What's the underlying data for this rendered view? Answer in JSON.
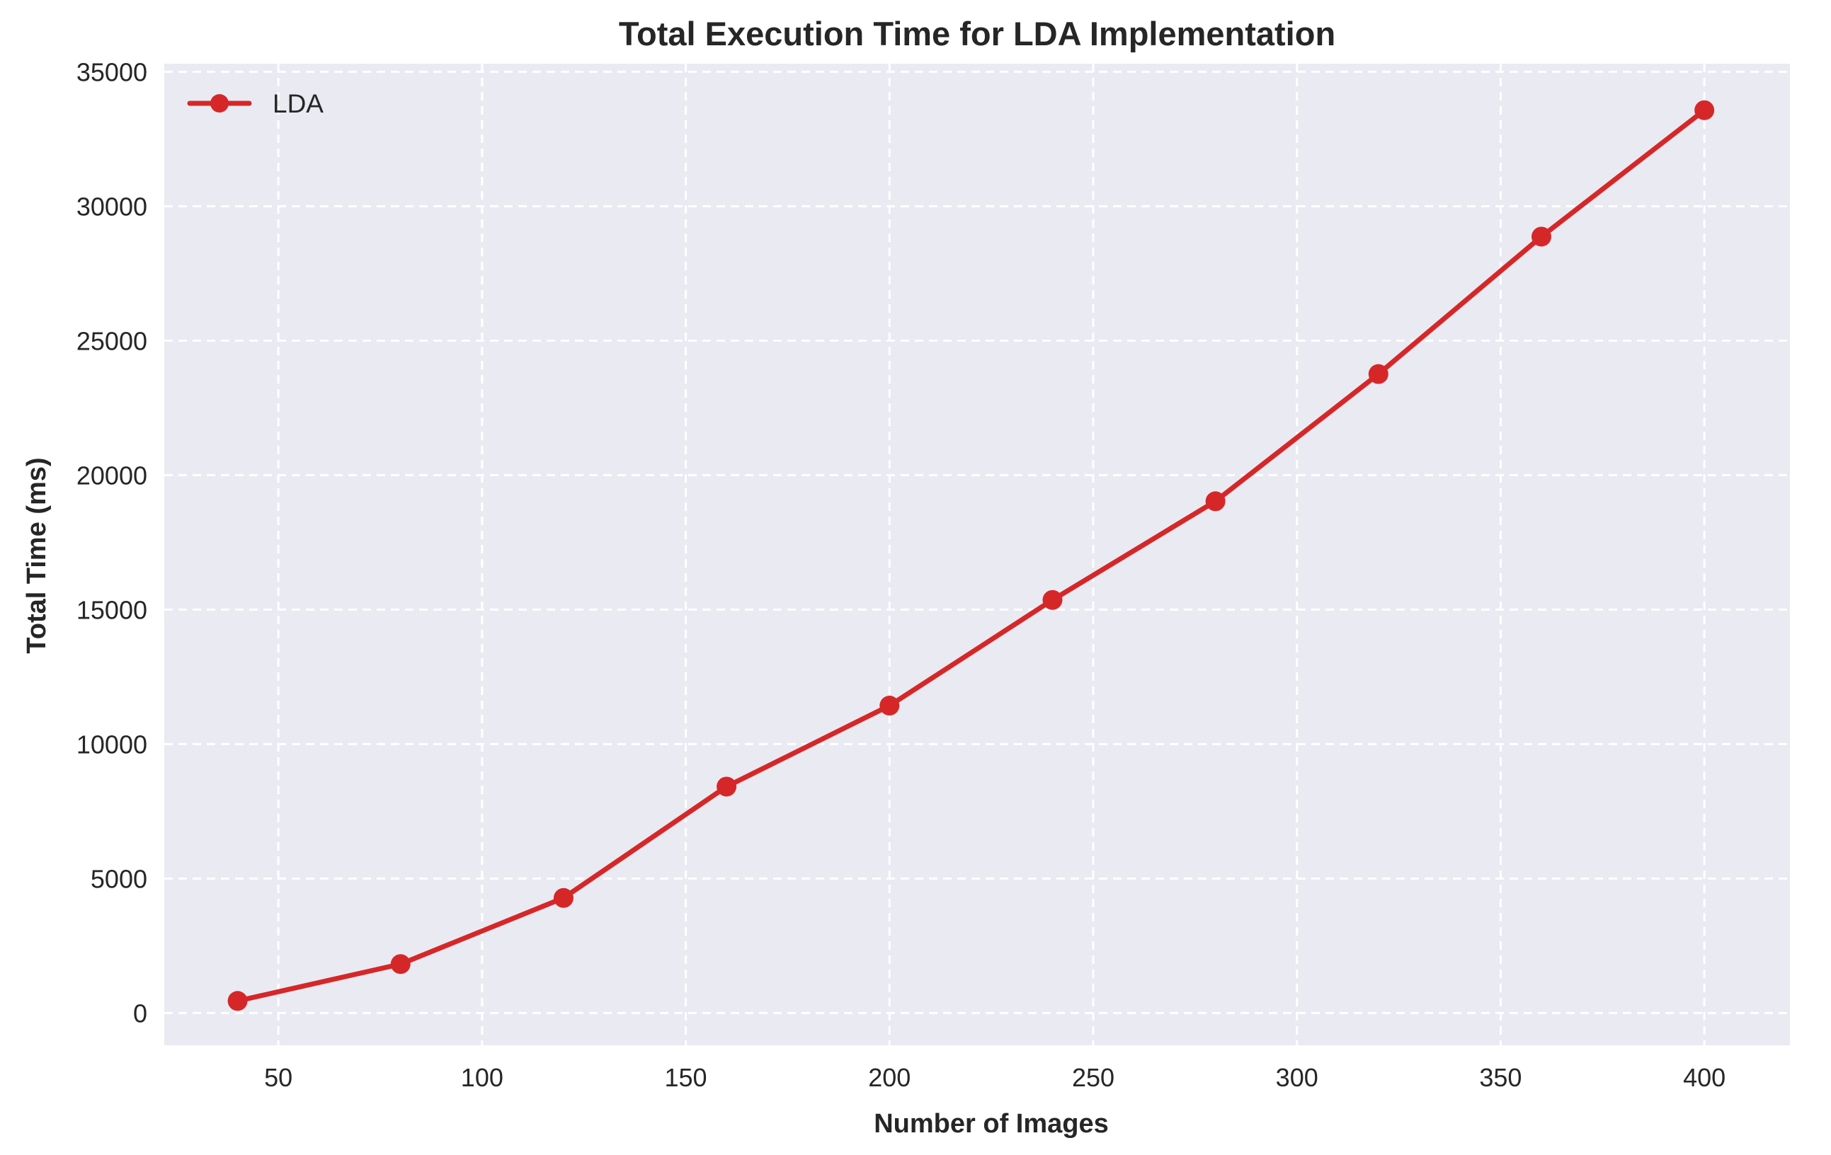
{
  "colors": {
    "plot_background": "#eaeaf2",
    "grid": "#ffffff",
    "series": "#d62728",
    "text": "#262626"
  },
  "chart_data": {
    "type": "line",
    "title": "Total Execution Time for LDA Implementation",
    "xlabel": "Number of Images",
    "ylabel": "Total Time (ms)",
    "xlim": [
      22,
      421
    ],
    "ylim": [
      -1200,
      35300
    ],
    "xticks": [
      50,
      100,
      150,
      200,
      250,
      300,
      350,
      400
    ],
    "yticks": [
      0,
      5000,
      10000,
      15000,
      20000,
      25000,
      30000,
      35000
    ],
    "grid": true,
    "grid_style": "dashed",
    "legend_position": "top-left",
    "marker": "circle",
    "series": [
      {
        "name": "LDA",
        "x": [
          40,
          80,
          120,
          160,
          200,
          240,
          280,
          320,
          360,
          400
        ],
        "y": [
          450,
          1820,
          4280,
          8420,
          11430,
          15360,
          19030,
          23760,
          28870,
          33570
        ]
      }
    ]
  }
}
